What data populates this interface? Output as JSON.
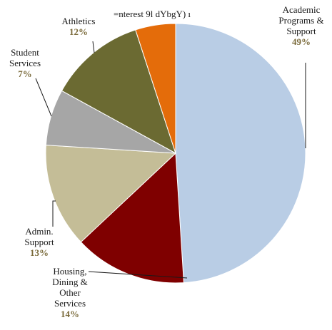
{
  "chart_data": {
    "type": "pie",
    "categories": [
      "Academic Programs & Support",
      "Housing, Dining & Other Services",
      "Admin. Support",
      "Student Services",
      "Athletics",
      "=nterest 9l dYbgY) ı"
    ],
    "values": [
      49,
      14,
      13,
      7,
      12,
      5
    ],
    "value_labels": [
      "49%",
      "14%",
      "13%",
      "7%",
      "12%",
      ""
    ],
    "colors": [
      "#b9cde5",
      "#7f0000",
      "#c4bd97",
      "#a6a6a6",
      "#6b6a32",
      "#e46c0a"
    ],
    "labels": [
      {
        "lines": [
          "Academic",
          "Programs &",
          "Support"
        ],
        "pct": "49%"
      },
      {
        "lines": [
          "Housing,",
          "Dining &",
          "Other",
          "Services"
        ],
        "pct": "14%"
      },
      {
        "lines": [
          "Admin.",
          "Support"
        ],
        "pct": "13%"
      },
      {
        "lines": [
          "Student",
          "Services"
        ],
        "pct": "7%"
      },
      {
        "lines": [
          "Athletics"
        ],
        "pct": "12%"
      },
      {
        "lines": [
          "=nterest 9l dYbgY) ı"
        ],
        "pct": ""
      }
    ]
  }
}
